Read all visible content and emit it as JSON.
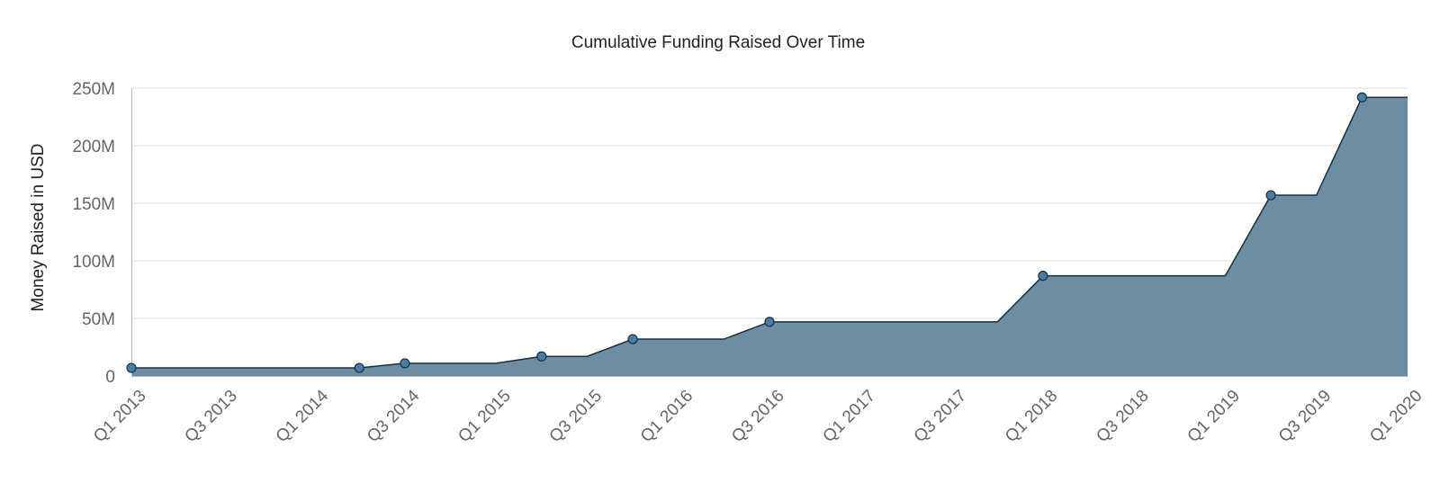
{
  "chart_data": {
    "type": "area",
    "title": "Cumulative Funding Raised Over Time",
    "xlabel": "",
    "ylabel": "Money Raised in USD",
    "x_ticks": [
      "Q1 2013",
      "Q3 2013",
      "Q1 2014",
      "Q3 2014",
      "Q1 2015",
      "Q3 2015",
      "Q1 2016",
      "Q3 2016",
      "Q1 2017",
      "Q3 2017",
      "Q1 2018",
      "Q3 2018",
      "Q1 2019",
      "Q3 2019",
      "Q1 2020"
    ],
    "y_ticks": [
      "0",
      "50M",
      "100M",
      "150M",
      "200M",
      "250M"
    ],
    "ylim": [
      0,
      250000000
    ],
    "xlim": [
      "Q1 2013",
      "Q1 2020"
    ],
    "grid": true,
    "legend": "none",
    "series": [
      {
        "line": [
          {
            "x": "Q1 2013",
            "y": 7000000
          },
          {
            "x": "Q2 2014",
            "y": 7000000
          },
          {
            "x": "Q3 2014",
            "y": 11000000
          },
          {
            "x": "Q1 2015",
            "y": 11000000
          },
          {
            "x": "Q2 2015",
            "y": 17000000
          },
          {
            "x": "Q3 2015",
            "y": 17000000
          },
          {
            "x": "Q4 2015",
            "y": 32000000
          },
          {
            "x": "Q2 2016",
            "y": 32000000
          },
          {
            "x": "Q3 2016",
            "y": 47000000
          },
          {
            "x": "Q4 2017",
            "y": 47000000
          },
          {
            "x": "Q1 2018",
            "y": 87000000
          },
          {
            "x": "Q1 2019",
            "y": 87000000
          },
          {
            "x": "Q2 2019",
            "y": 157000000
          },
          {
            "x": "Q3 2019",
            "y": 157000000
          },
          {
            "x": "Q4 2019",
            "y": 242000000
          },
          {
            "x": "Q1 2020",
            "y": 242000000
          }
        ],
        "markers": [
          {
            "x": "Q1 2013",
            "y": 7000000
          },
          {
            "x": "Q2 2014",
            "y": 7000000
          },
          {
            "x": "Q3 2014",
            "y": 11000000
          },
          {
            "x": "Q2 2015",
            "y": 17000000
          },
          {
            "x": "Q4 2015",
            "y": 32000000
          },
          {
            "x": "Q3 2016",
            "y": 47000000
          },
          {
            "x": "Q1 2018",
            "y": 87000000
          },
          {
            "x": "Q2 2019",
            "y": 157000000
          },
          {
            "x": "Q4 2019",
            "y": 242000000
          }
        ]
      }
    ],
    "colors": {
      "area_fill": "#6e8da1",
      "line": "#12304a",
      "marker_fill": "#4a7da1",
      "marker_stroke": "#12304a"
    }
  }
}
